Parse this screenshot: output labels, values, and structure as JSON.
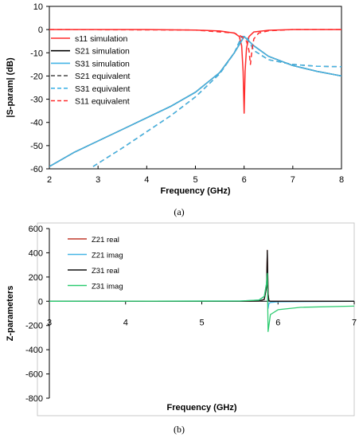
{
  "chart_data": [
    {
      "type": "line",
      "panel_label": "(a)",
      "xlabel": "Frequency (GHz)",
      "ylabel": "|S-param| (dB)",
      "xlim": [
        2,
        8
      ],
      "ylim": [
        -60,
        10
      ],
      "xticks": [
        "2",
        "3",
        "4",
        "5",
        "6",
        "7",
        "8"
      ],
      "yticks": [
        "10",
        "0",
        "-10",
        "-20",
        "-30",
        "-40",
        "-50",
        "-60"
      ],
      "grid": false,
      "legend_position": "upper-left",
      "series": [
        {
          "name": "s11 simulation",
          "color": "#ff2a2a",
          "style": "solid",
          "x": [
            2,
            3,
            4,
            5,
            5.5,
            5.8,
            5.9,
            5.95,
            5.98,
            6.0,
            6.02,
            6.05,
            6.1,
            6.2,
            6.5,
            7,
            8
          ],
          "y": [
            0,
            0,
            0,
            -0.2,
            -0.6,
            -1.5,
            -3,
            -7,
            -18,
            -36,
            -18,
            -8,
            -3,
            -1,
            -0.3,
            0,
            0
          ]
        },
        {
          "name": "S21 simulation",
          "color": "#000000",
          "style": "solid",
          "x": [
            2,
            2.5,
            3,
            3.5,
            4,
            4.5,
            5,
            5.5,
            5.8,
            6.0,
            6.2,
            6.5,
            7,
            7.5,
            8
          ],
          "y": [
            -59,
            -53,
            -48,
            -43,
            -38,
            -33,
            -27,
            -18.5,
            -10,
            -3,
            -7,
            -11.5,
            -15.5,
            -18,
            -20
          ]
        },
        {
          "name": "S31 simulation",
          "color": "#45b5e6",
          "style": "solid",
          "x": [
            2,
            2.5,
            3,
            3.5,
            4,
            4.5,
            5,
            5.5,
            5.8,
            6.0,
            6.2,
            6.5,
            7,
            7.5,
            8
          ],
          "y": [
            -59,
            -53,
            -48,
            -43,
            -38,
            -33,
            -27,
            -18.5,
            -10,
            -3,
            -7,
            -11.5,
            -15.5,
            -18,
            -20
          ]
        },
        {
          "name": "S21 equivalent",
          "color": "#555555",
          "style": "dashed",
          "x": [
            2.9,
            3.5,
            4,
            4.5,
            5,
            5.5,
            5.8,
            5.95,
            6.05,
            6.1,
            6.2,
            6.5,
            7,
            7.5,
            8
          ],
          "y": [
            -59,
            -51,
            -44,
            -37,
            -29,
            -19,
            -10,
            -3,
            -3,
            -5,
            -9,
            -13,
            -15,
            -15.8,
            -16
          ]
        },
        {
          "name": "S31 equivalent",
          "color": "#45b5e6",
          "style": "dashed",
          "x": [
            2.9,
            3.5,
            4,
            4.5,
            5,
            5.5,
            5.8,
            5.95,
            6.05,
            6.1,
            6.2,
            6.5,
            7,
            7.5,
            8
          ],
          "y": [
            -59,
            -51,
            -44,
            -37,
            -29,
            -19,
            -10,
            -3,
            -3,
            -5,
            -9,
            -13,
            -15,
            -15.8,
            -16
          ]
        },
        {
          "name": "S11 equivalent",
          "color": "#ff2a2a",
          "style": "dashed",
          "x": [
            2,
            5,
            5.8,
            5.95,
            6.05,
            6.1,
            6.13,
            6.16,
            6.2,
            6.3,
            6.5,
            7,
            8
          ],
          "y": [
            0,
            -0.2,
            -1.5,
            -3,
            -5,
            -9,
            -15,
            -9,
            -4,
            -1.5,
            -0.5,
            0,
            0
          ]
        }
      ]
    },
    {
      "type": "line",
      "panel_label": "(b)",
      "xlabel": "Frequency (GHz)",
      "ylabel": "Z-parameters",
      "xlim": [
        3,
        7
      ],
      "ylim": [
        -800,
        600
      ],
      "xticks": [
        "3",
        "4",
        "5",
        "6",
        "7"
      ],
      "yticks": [
        "600",
        "400",
        "200",
        "0",
        "-200",
        "-400",
        "-600",
        "-800"
      ],
      "grid": false,
      "legend_position": "upper-left",
      "series": [
        {
          "name": "Z21 real",
          "color": "#c0392b",
          "style": "solid",
          "x": [
            3,
            5.5,
            5.75,
            5.82,
            5.85,
            5.86,
            5.87,
            5.88,
            5.9,
            6.0,
            7
          ],
          "y": [
            0,
            0,
            2,
            15,
            120,
            420,
            60,
            5,
            0,
            0,
            0
          ]
        },
        {
          "name": "Z21 imag",
          "color": "#45b5e6",
          "style": "solid",
          "x": [
            3,
            5.5,
            5.75,
            5.82,
            5.85,
            5.86,
            5.87,
            5.88,
            5.9,
            6.0,
            7
          ],
          "y": [
            0,
            2,
            10,
            40,
            150,
            260,
            -60,
            -20,
            -10,
            -5,
            0
          ]
        },
        {
          "name": "Z31 real",
          "color": "#111111",
          "style": "solid",
          "x": [
            3,
            5.5,
            5.75,
            5.82,
            5.85,
            5.86,
            5.87,
            5.88,
            5.9,
            6.0,
            7
          ],
          "y": [
            0,
            0,
            2,
            15,
            120,
            420,
            60,
            5,
            0,
            0,
            0
          ]
        },
        {
          "name": "Z31 imag",
          "color": "#2ecc71",
          "style": "solid",
          "x": [
            3,
            5.5,
            5.75,
            5.82,
            5.85,
            5.86,
            5.87,
            5.9,
            6.0,
            6.3,
            7
          ],
          "y": [
            0,
            2,
            10,
            40,
            150,
            230,
            -250,
            -110,
            -70,
            -50,
            -40
          ]
        }
      ]
    }
  ]
}
